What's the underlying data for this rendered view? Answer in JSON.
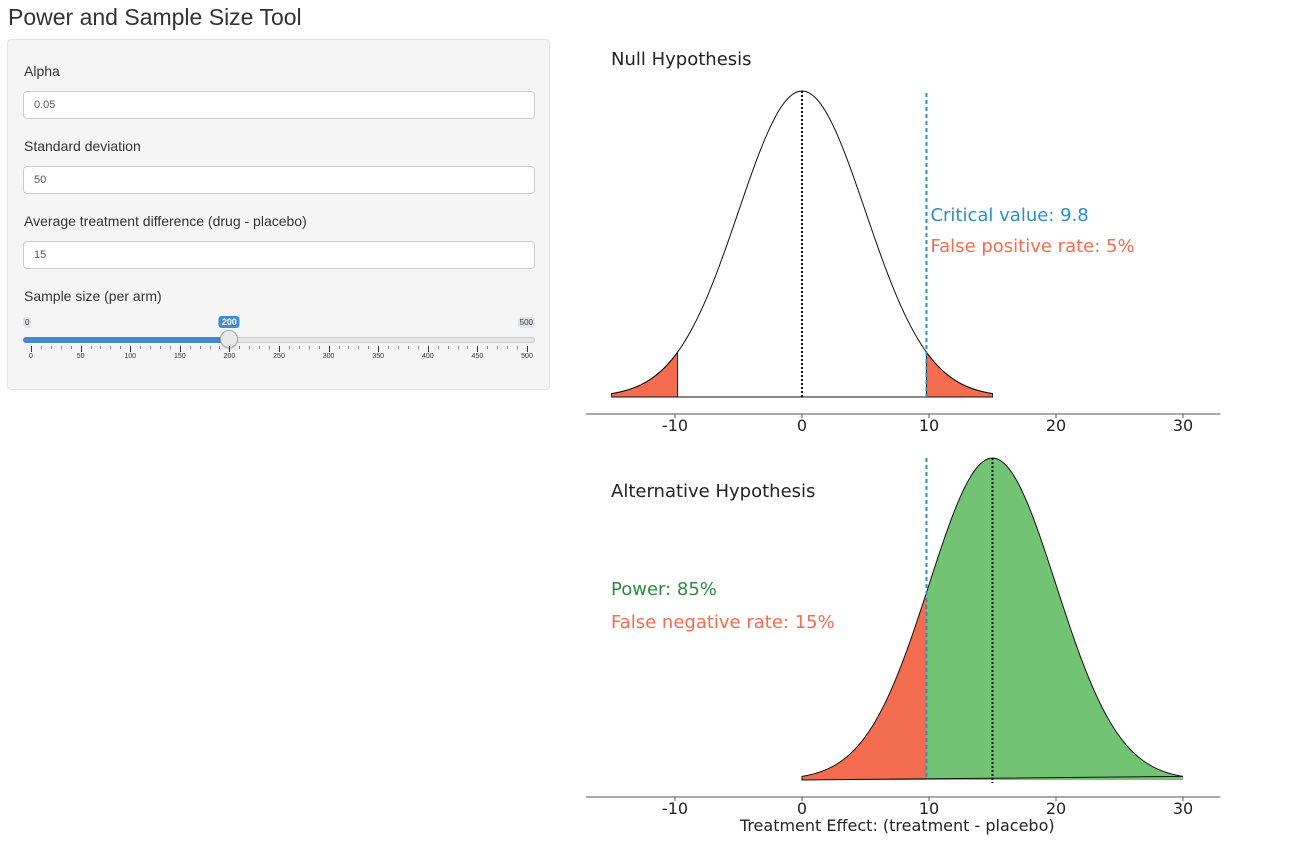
{
  "app": {
    "title": "Power and Sample Size Tool"
  },
  "inputs": {
    "alpha": {
      "label": "Alpha",
      "value": "0.05"
    },
    "sd": {
      "label": "Standard deviation",
      "value": "50"
    },
    "diff": {
      "label": "Average treatment difference (drug - placebo)",
      "value": "15"
    }
  },
  "slider": {
    "label": "Sample size (per arm)",
    "min": 0,
    "max": 500,
    "value": 200,
    "min_label": "0",
    "max_label": "500",
    "value_label": "200",
    "tick_labels": [
      "0",
      "50",
      "100",
      "150",
      "200",
      "250",
      "300",
      "350",
      "400",
      "450",
      "500"
    ],
    "fill_color": "#428bca"
  },
  "null_plot": {
    "title": "Null Hypothesis",
    "mean": 0,
    "critical_value": 9.8,
    "critical_label": "Critical value: 9.8",
    "fpr_label": "False positive rate: 5%",
    "critical_color": "#2c8fc1",
    "tail_color": "#f36c4f"
  },
  "alt_plot": {
    "title": "Alternative Hypothesis",
    "mean": 15,
    "power_label": "Power: 85%",
    "fnr_label": "False negative rate: 15%",
    "power_color": "#72c373",
    "power_text_color": "#2e8b3e",
    "fnr_color": "#f36c4f",
    "xlabel": "Treatment Effect: (treatment - placebo)"
  },
  "axis": {
    "xlim": [
      -17,
      32
    ],
    "ticks": [
      -10,
      0,
      10,
      20,
      30
    ],
    "tick_labels": [
      "-10",
      "0",
      "10",
      "20",
      "30"
    ],
    "curve_range": [
      -15,
      15
    ]
  }
}
